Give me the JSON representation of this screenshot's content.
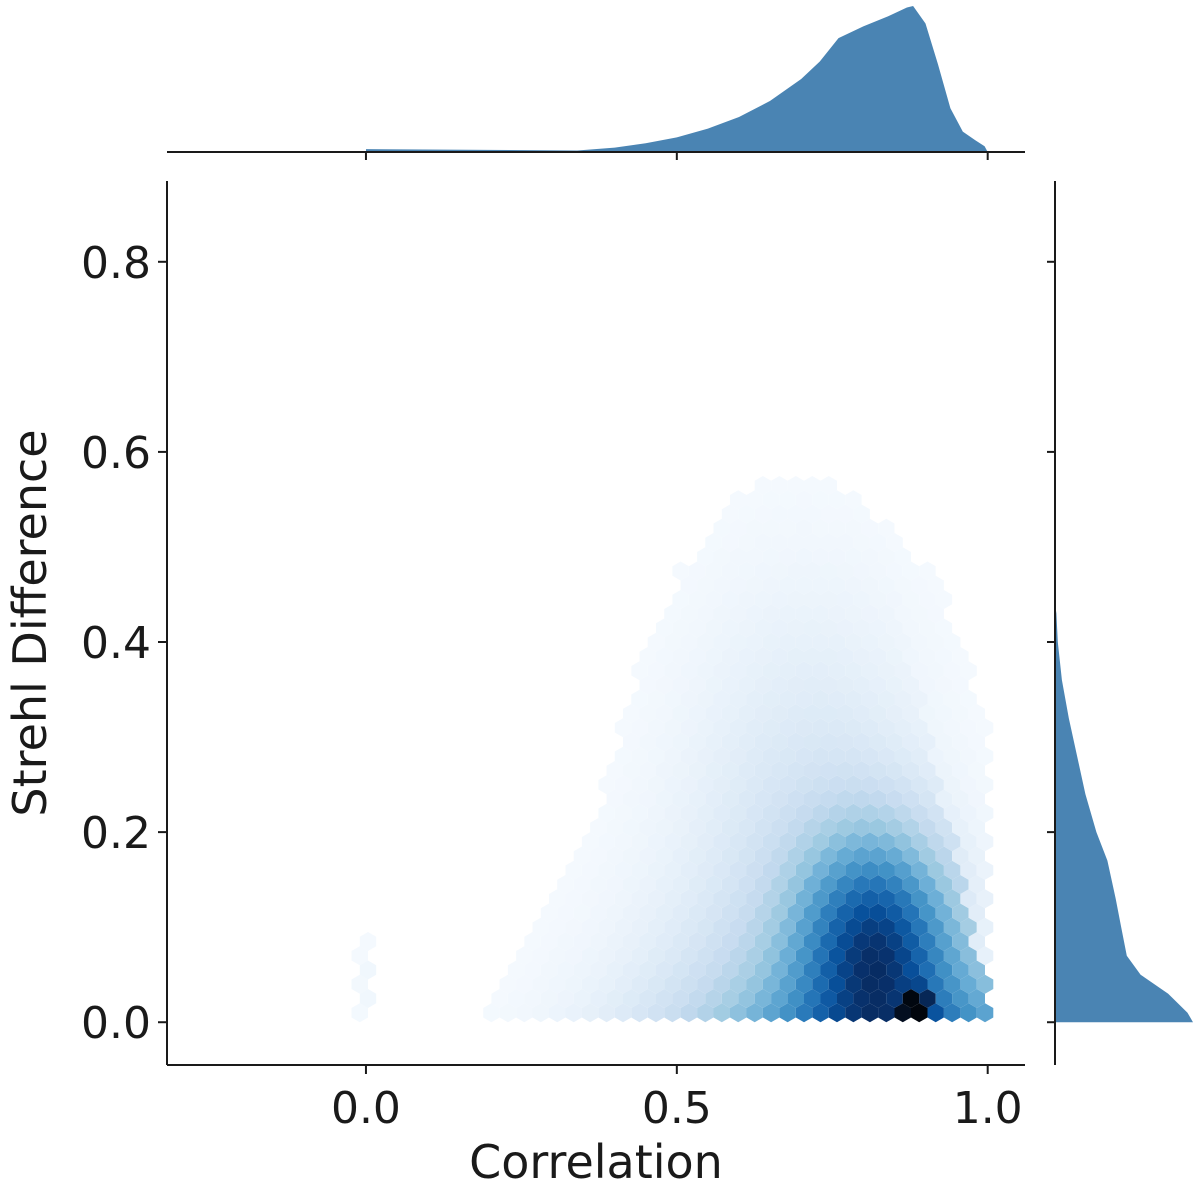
{
  "chart_data": {
    "type": "hexbin-joint",
    "xlabel": "Correlation",
    "ylabel": "Strehl Difference",
    "xlim": [
      -0.32,
      1.06
    ],
    "ylim": [
      -0.045,
      0.885
    ],
    "x_ticks": [
      {
        "value": 0.0,
        "label": "0.0"
      },
      {
        "value": 0.5,
        "label": "0.5"
      },
      {
        "value": 1.0,
        "label": "1.0"
      }
    ],
    "y_ticks": [
      {
        "value": 0.0,
        "label": "0.0"
      },
      {
        "value": 0.2,
        "label": "0.2"
      },
      {
        "value": 0.4,
        "label": "0.4"
      },
      {
        "value": 0.6,
        "label": "0.6"
      },
      {
        "value": 0.8,
        "label": "0.8"
      }
    ],
    "colormap": "Blues",
    "marginal_color": "#4a84b3",
    "density_peak": {
      "x": 0.88,
      "y": 0.015
    },
    "marginal_x": {
      "x": [
        0.0,
        0.34,
        0.4,
        0.45,
        0.5,
        0.55,
        0.6,
        0.65,
        0.7,
        0.73,
        0.76,
        0.8,
        0.84,
        0.87,
        0.88,
        0.9,
        0.92,
        0.94,
        0.96,
        0.98,
        0.995,
        1.0
      ],
      "density": [
        0.02,
        0.01,
        0.03,
        0.06,
        0.1,
        0.16,
        0.24,
        0.35,
        0.5,
        0.62,
        0.78,
        0.86,
        0.93,
        0.99,
        1.0,
        0.88,
        0.6,
        0.3,
        0.14,
        0.08,
        0.04,
        0.0
      ]
    },
    "marginal_y": {
      "y": [
        0.0,
        0.01,
        0.03,
        0.05,
        0.07,
        0.1,
        0.13,
        0.17,
        0.2,
        0.24,
        0.28,
        0.32,
        0.36,
        0.4,
        0.43,
        0.44
      ],
      "density": [
        1.0,
        0.96,
        0.82,
        0.62,
        0.52,
        0.48,
        0.44,
        0.38,
        0.3,
        0.22,
        0.16,
        0.1,
        0.05,
        0.02,
        0.01,
        0.0
      ]
    }
  }
}
